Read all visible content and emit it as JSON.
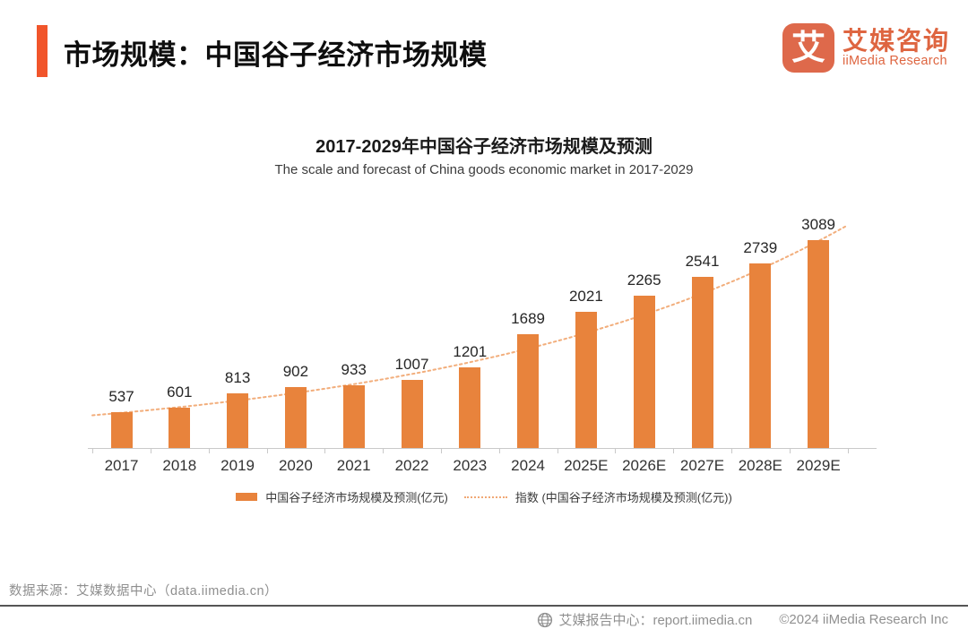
{
  "header": {
    "title": "市场规模：中国谷子经济市场规模",
    "accent_color": "#F1552B",
    "logo": {
      "glyph": "艾",
      "square_color": "#DE694B",
      "name_cn": "艾媒咨询",
      "name_en": "iiMedia Research",
      "text_color": "#DE6540"
    }
  },
  "chart_data": {
    "type": "bar",
    "title": "2017-2029年中国谷子经济市场规模及预测",
    "subtitle": "The scale and forecast of China goods economic market in 2017-2029",
    "categories": [
      "2017",
      "2018",
      "2019",
      "2020",
      "2021",
      "2022",
      "2023",
      "2024",
      "2025E",
      "2026E",
      "2027E",
      "2028E",
      "2029E"
    ],
    "series": [
      {
        "name": "中国谷子经济市场规模及预测(亿元)",
        "type": "bar",
        "color": "#E8833C",
        "values": [
          537,
          601,
          813,
          902,
          933,
          1007,
          1201,
          1689,
          2021,
          2265,
          2541,
          2739,
          3089
        ]
      },
      {
        "name": "指数 (中国谷子经济市场规模及预测(亿元))",
        "type": "line",
        "line_style": "dotted",
        "color": "#F2AE7C"
      }
    ],
    "unit": "亿元",
    "ylim": [
      0,
      3200
    ],
    "grid": false,
    "value_labels": true,
    "legend_position": "bottom",
    "axis_color": "#C9C9C9"
  },
  "legend": {
    "bar_label": "中国谷子经济市场规模及预测(亿元)",
    "line_label": "指数 (中国谷子经济市场规模及预测(亿元))"
  },
  "footer": {
    "source": "数据来源：艾媒数据中心（data.iimedia.cn）",
    "report_center": "艾媒报告中心：report.iimedia.cn",
    "copyright": "©2024  iiMedia Research Inc"
  }
}
